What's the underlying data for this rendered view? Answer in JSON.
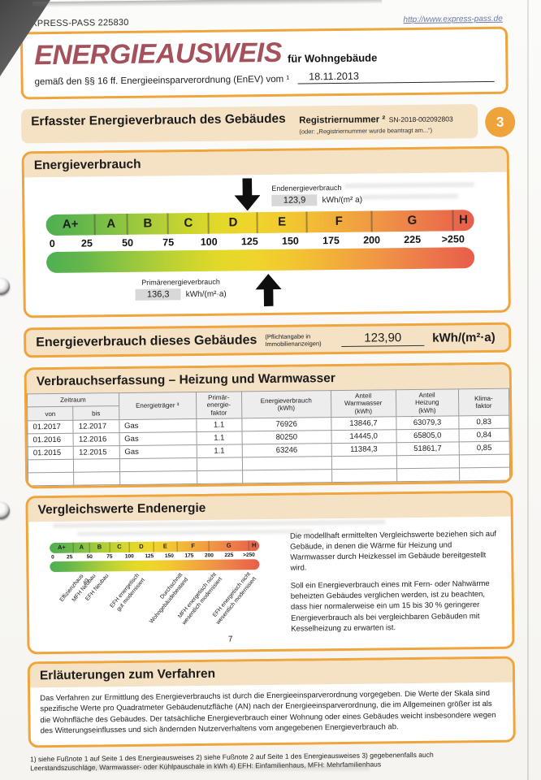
{
  "topbar": {
    "doc_ref": "EXPRESS-PASS 225830",
    "url": "http://www.express-pass.de"
  },
  "header": {
    "title": "ENERGIEAUSWEIS",
    "subtitle_suffix": "für Wohngebäude",
    "law_line": "gemäß den §§ 16 ff. Energieeinsparverordnung (EnEV) vom ¹",
    "date": "18.11.2013"
  },
  "section": {
    "title": "Erfasster Energieverbrauch des Gebäudes",
    "reg_label": "Registriernummer ²",
    "reg_value": "SN-2018-002092803",
    "reg_note": "(oder: „Registriernummer wurde beantragt am...“)",
    "page_badge": "3"
  },
  "energy_box": {
    "title": "Energieverbrauch"
  },
  "energy_scale": {
    "max_display": 263,
    "bands": [
      {
        "label": "A+",
        "max": 30
      },
      {
        "label": "A",
        "max": 50
      },
      {
        "label": "B",
        "max": 75
      },
      {
        "label": "C",
        "max": 100
      },
      {
        "label": "D",
        "max": 130
      },
      {
        "label": "E",
        "max": 160
      },
      {
        "label": "F",
        "max": 200
      },
      {
        "label": "G",
        "max": 250
      },
      {
        "label": "H",
        "max": 263
      }
    ],
    "ticks": [
      {
        "label": "0",
        "value": 0
      },
      {
        "label": "25",
        "value": 25
      },
      {
        "label": "50",
        "value": 50
      },
      {
        "label": "75",
        "value": 75
      },
      {
        "label": "100",
        "value": 100
      },
      {
        "label": "125",
        "value": 125
      },
      {
        "label": "150",
        "value": 150
      },
      {
        "label": "175",
        "value": 175
      },
      {
        "label": "200",
        "value": 200
      },
      {
        "label": "225",
        "value": 225
      },
      {
        "label": ">250",
        "value": 250
      }
    ],
    "pointers": {
      "end": {
        "label": "Endenergieverbrauch",
        "value": 123.9,
        "value_text": "123,9",
        "unit": "kWh/(m² a)"
      },
      "primary": {
        "label": "Primärenergieverbrauch",
        "value": 136.3,
        "value_text": "136,3",
        "unit": "kWh/(m²·a)"
      }
    }
  },
  "building": {
    "title": "Energieverbrauch dieses Gebäudes",
    "note": "(Pflichtangabe in\nImmobilienanzeigen)",
    "value": "123,90",
    "unit": "kWh/(m²·a)"
  },
  "consumption": {
    "title": "Verbrauchserfassung – Heizung und Warmwasser",
    "headers": {
      "zeitraum": "Zeitraum",
      "von": "von",
      "bis": "bis",
      "traeger": "Energieträger ³",
      "pef": "Primär-\nenergie-\nfaktor",
      "verbrauch": "Energieverbrauch\n(kWh)",
      "warmwasser": "Anteil\nWarmwasser\n(kWh)",
      "heizung": "Anteil\nHeizung\n(kWh)",
      "klima": "Klima-\nfaktor"
    },
    "rows": [
      [
        "01.2017",
        "12.2017",
        "Gas",
        "1.1",
        "76926",
        "13846,7",
        "63079,3",
        "0,83"
      ],
      [
        "01.2016",
        "12.2016",
        "Gas",
        "1.1",
        "80250",
        "14445,0",
        "65805,0",
        "0,84"
      ],
      [
        "01.2015",
        "12.2015",
        "Gas",
        "1.1",
        "63246",
        "11384,3",
        "51861,7",
        "0,85"
      ],
      [
        "",
        "",
        "",
        "",
        "",
        "",
        "",
        ""
      ],
      [
        "",
        "",
        "",
        "",
        "",
        "",
        "",
        ""
      ]
    ]
  },
  "comparison": {
    "title": "Vergleichswerte Endenergie",
    "references": [
      {
        "label": "Effizienzhaus 40",
        "value": 38
      },
      {
        "label": "MFH Neubau",
        "value": 54
      },
      {
        "label": "EFH Neubau",
        "value": 70
      },
      {
        "label": "EFH energetisch\ngut modernisiert",
        "value": 108
      },
      {
        "label": "Durchschnitt\nWohngebäudebestand",
        "value": 162
      },
      {
        "label": "MFH energetisch nicht\nwesentlich modernisiert",
        "value": 205
      },
      {
        "label": "EFH energetisch nicht\nwesentlich modernisiert",
        "value": 248
      }
    ],
    "page_number": "7",
    "paragraph1": "Die modellhaft ermittelten Vergleichswerte beziehen sich auf Gebäude, in denen die Wärme für Heizung und Warmwasser durch Heizkessel im Gebäude bereitgestellt wird.",
    "paragraph2": "Soll ein Energieverbrauch eines mit Fern- oder Nahwärme beheizten Gebäudes verglichen werden, ist zu beachten, dass hier normalerweise ein um 15 bis 30 % geringerer Energieverbrauch als bei vergleichbaren Gebäuden mit Kesselheizung zu erwarten ist."
  },
  "explanation": {
    "title": "Erläuterungen zum Verfahren",
    "text": "Das Verfahren zur Ermittlung des Energieverbrauchs ist durch die Energieeinsparverordnung vorgegeben. Die Werte der Skala sind spezifische Werte pro Quadratmeter Gebäudenutzfläche (AN) nach der Energieeinsparverordnung, die im Allgemeinen größer ist als die Wohnfläche des Gebäudes. Der tatsächliche Energieverbrauch einer Wohnung oder eines Gebäudes weicht insbesondere wegen des Witterungseinflusses und sich ändernden Nutzerverhaltens vom angegebenen Energieverbrauch ab.",
    "footnotes": "1) siehe Fußnote 1 auf Seite 1 des Energieausweises    2) siehe Fußnote 2 auf Seite 1 des Energieausweises    3) gegebenenfalls auch Leerstandszuschläge, Warmwasser- oder Kühlpauschale in kWh    4) EFH: Einfamilienhaus, MFH: Mehrfamilienhaus"
  },
  "colors": {
    "accent_orange": "#F0A43C",
    "band_fill": "#F5E1C4",
    "title_red": "#A5515C",
    "scale_green": "#4FAF52",
    "scale_red": "#E75D49"
  }
}
